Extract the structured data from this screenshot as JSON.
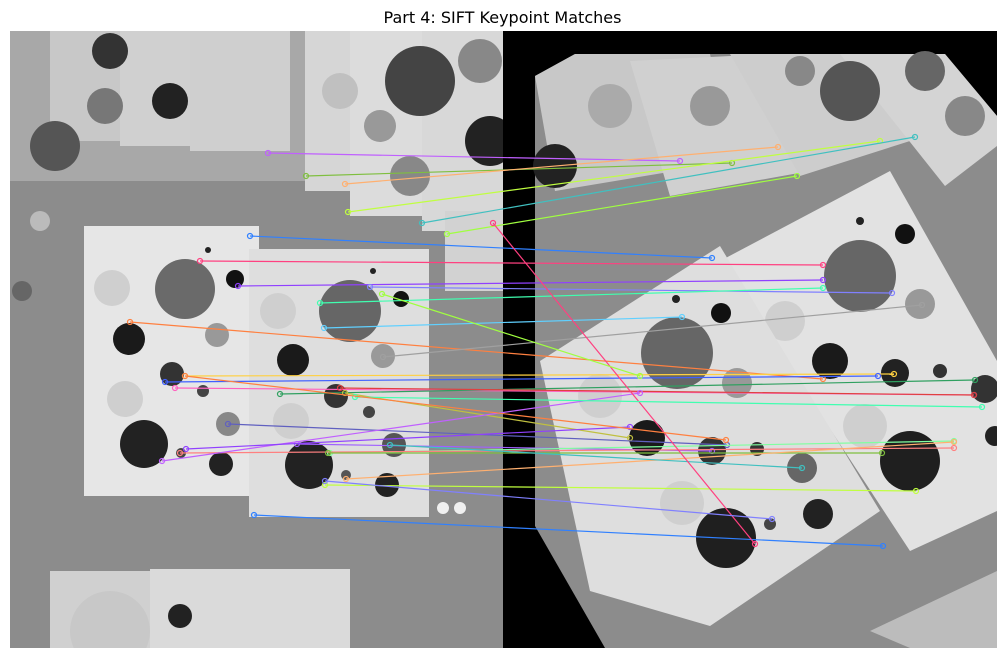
{
  "figure": {
    "title": "Part 4: SIFT Keypoint Matches"
  },
  "images": {
    "left": {
      "description_kind": "grayscale photo of paper sheets with printed circles"
    },
    "right": {
      "description_kind": "warped grayscale photo (perspective transformed) with black borders"
    }
  },
  "match_colors": [
    "#c060ff",
    "#7fbf3f",
    "#ffb070",
    "#c0ff40",
    "#40c0c0",
    "#3080ff",
    "#ff4080",
    "#a0ff40",
    "#9040ff",
    "#8080ff",
    "#40ffb0",
    "#ff8040",
    "#60d0ff",
    "#a0a0a0",
    "#ffd040",
    "#4060ff",
    "#ff60c0",
    "#30a060",
    "#c0c040",
    "#e04040",
    "#6060c0",
    "#a060ff",
    "#80ffa0",
    "#ff8080"
  ]
}
